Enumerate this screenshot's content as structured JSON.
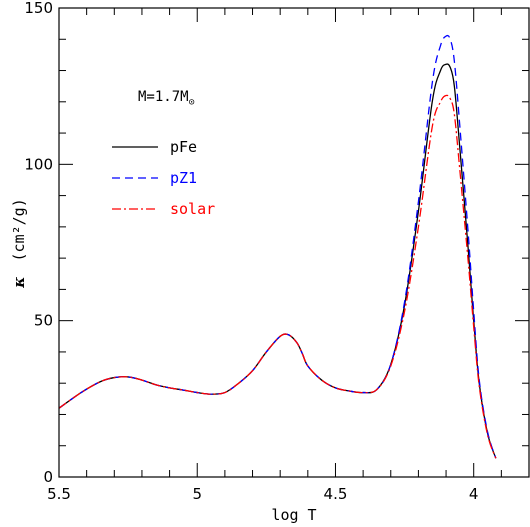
{
  "chart_data": {
    "type": "line",
    "title": "",
    "xlabel": "log T",
    "ylabel_symbol": "κ",
    "ylabel_unit": "(cm²/g)",
    "x_reversed": true,
    "xlim": [
      5.5,
      3.8
    ],
    "ylim": [
      0,
      150
    ],
    "x_ticks": [
      5.5,
      5,
      4.5,
      4
    ],
    "x_tick_labels": [
      "5.5",
      "5",
      "4.5",
      "4"
    ],
    "y_ticks": [
      0,
      50,
      100,
      150
    ],
    "y_tick_labels": [
      "0",
      "50",
      "100",
      "150"
    ],
    "annotation": {
      "prefix": "M=1.7M",
      "symbol": "⊙"
    },
    "legend_position": "upper-left",
    "series": [
      {
        "name": "pFe",
        "color": "#000000",
        "style": "solid",
        "x": [
          5.5,
          5.42,
          5.35,
          5.3,
          5.25,
          5.2,
          5.15,
          5.1,
          5.05,
          5.0,
          4.95,
          4.9,
          4.85,
          4.8,
          4.75,
          4.7,
          4.67,
          4.64,
          4.62,
          4.6,
          4.55,
          4.5,
          4.45,
          4.4,
          4.35,
          4.3,
          4.25,
          4.2,
          4.15,
          4.12,
          4.1,
          4.085,
          4.07,
          4.05,
          4.02,
          4.0,
          3.98,
          3.95,
          3.92
        ],
        "y": [
          22,
          27,
          30.5,
          31.8,
          32,
          31,
          29.5,
          28.5,
          27.8,
          27,
          26.5,
          27,
          30,
          34,
          40,
          45,
          45.5,
          43,
          39.5,
          35.5,
          31,
          28.5,
          27.5,
          27,
          28,
          36,
          55,
          85,
          120,
          130,
          132,
          131,
          125,
          105,
          73,
          50,
          30,
          14,
          6
        ]
      },
      {
        "name": "pZ1",
        "color": "#0000ff",
        "style": "dashed",
        "x": [
          5.5,
          5.42,
          5.35,
          5.3,
          5.25,
          5.2,
          5.15,
          5.1,
          5.05,
          5.0,
          4.95,
          4.9,
          4.85,
          4.8,
          4.75,
          4.7,
          4.67,
          4.64,
          4.62,
          4.6,
          4.55,
          4.5,
          4.45,
          4.4,
          4.35,
          4.3,
          4.25,
          4.2,
          4.15,
          4.12,
          4.1,
          4.085,
          4.07,
          4.05,
          4.02,
          4.0,
          3.98,
          3.95,
          3.92
        ],
        "y": [
          22,
          27,
          30.5,
          31.8,
          32,
          31,
          29.5,
          28.5,
          27.8,
          27,
          26.5,
          27,
          30,
          34,
          40,
          45,
          45.5,
          43,
          39.5,
          35.5,
          31,
          28.5,
          27.5,
          27,
          28,
          36,
          56,
          88,
          126,
          138,
          141,
          140,
          133,
          112,
          78,
          53,
          31,
          14.5,
          6
        ]
      },
      {
        "name": "solar",
        "color": "#ff0000",
        "style": "dashdot",
        "x": [
          5.5,
          5.42,
          5.35,
          5.3,
          5.25,
          5.2,
          5.15,
          5.1,
          5.05,
          5.0,
          4.95,
          4.9,
          4.85,
          4.8,
          4.75,
          4.7,
          4.67,
          4.64,
          4.62,
          4.6,
          4.55,
          4.5,
          4.45,
          4.4,
          4.35,
          4.3,
          4.25,
          4.2,
          4.15,
          4.12,
          4.1,
          4.085,
          4.07,
          4.05,
          4.02,
          4.0,
          3.98,
          3.95,
          3.92
        ],
        "y": [
          22,
          27,
          30.5,
          31.8,
          32,
          31,
          29.5,
          28.5,
          27.8,
          27,
          26.5,
          27,
          30,
          34,
          40,
          45,
          45.5,
          43,
          39.5,
          35.5,
          31,
          28.5,
          27.5,
          27,
          28,
          35.5,
          53,
          80,
          112,
          120,
          122,
          121,
          116,
          98,
          69,
          48,
          29,
          13.5,
          6
        ]
      }
    ]
  }
}
